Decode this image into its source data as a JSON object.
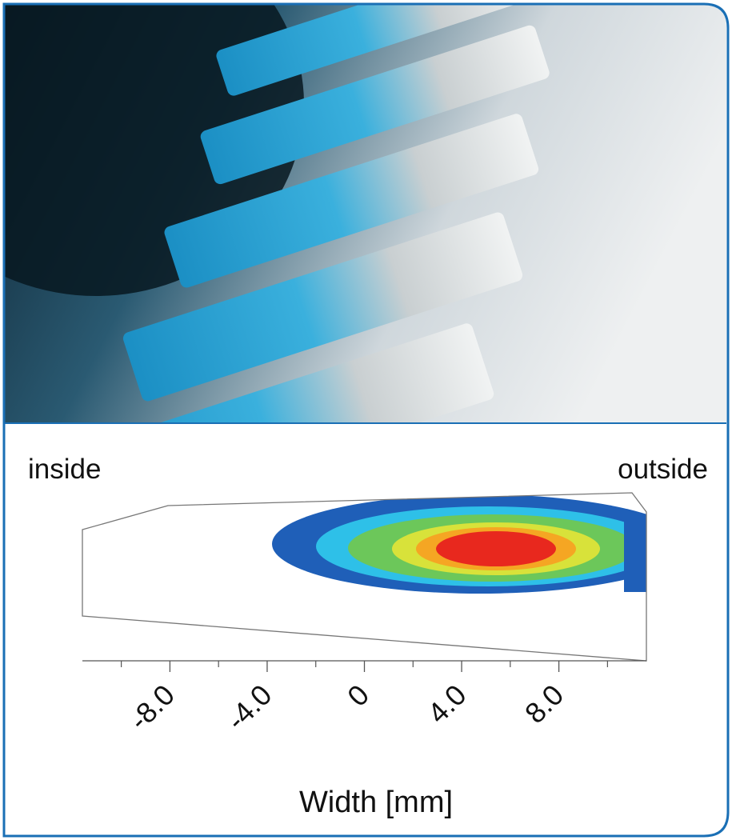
{
  "chart_data": {
    "type": "contact-pattern",
    "left_label": "inside",
    "right_label": "outside",
    "xlabel": "Width [mm]",
    "xlim": [
      -11.6,
      11.6
    ],
    "xticks": [
      {
        "value": -8,
        "label": "-8.0"
      },
      {
        "value": -4,
        "label": "-4.0"
      },
      0,
      {
        "value": 4,
        "label": "4.0"
      },
      {
        "value": 8,
        "label": "8.0"
      }
    ],
    "minor_xticks": [
      -10,
      -6,
      -2,
      2,
      6,
      10
    ]
  }
}
